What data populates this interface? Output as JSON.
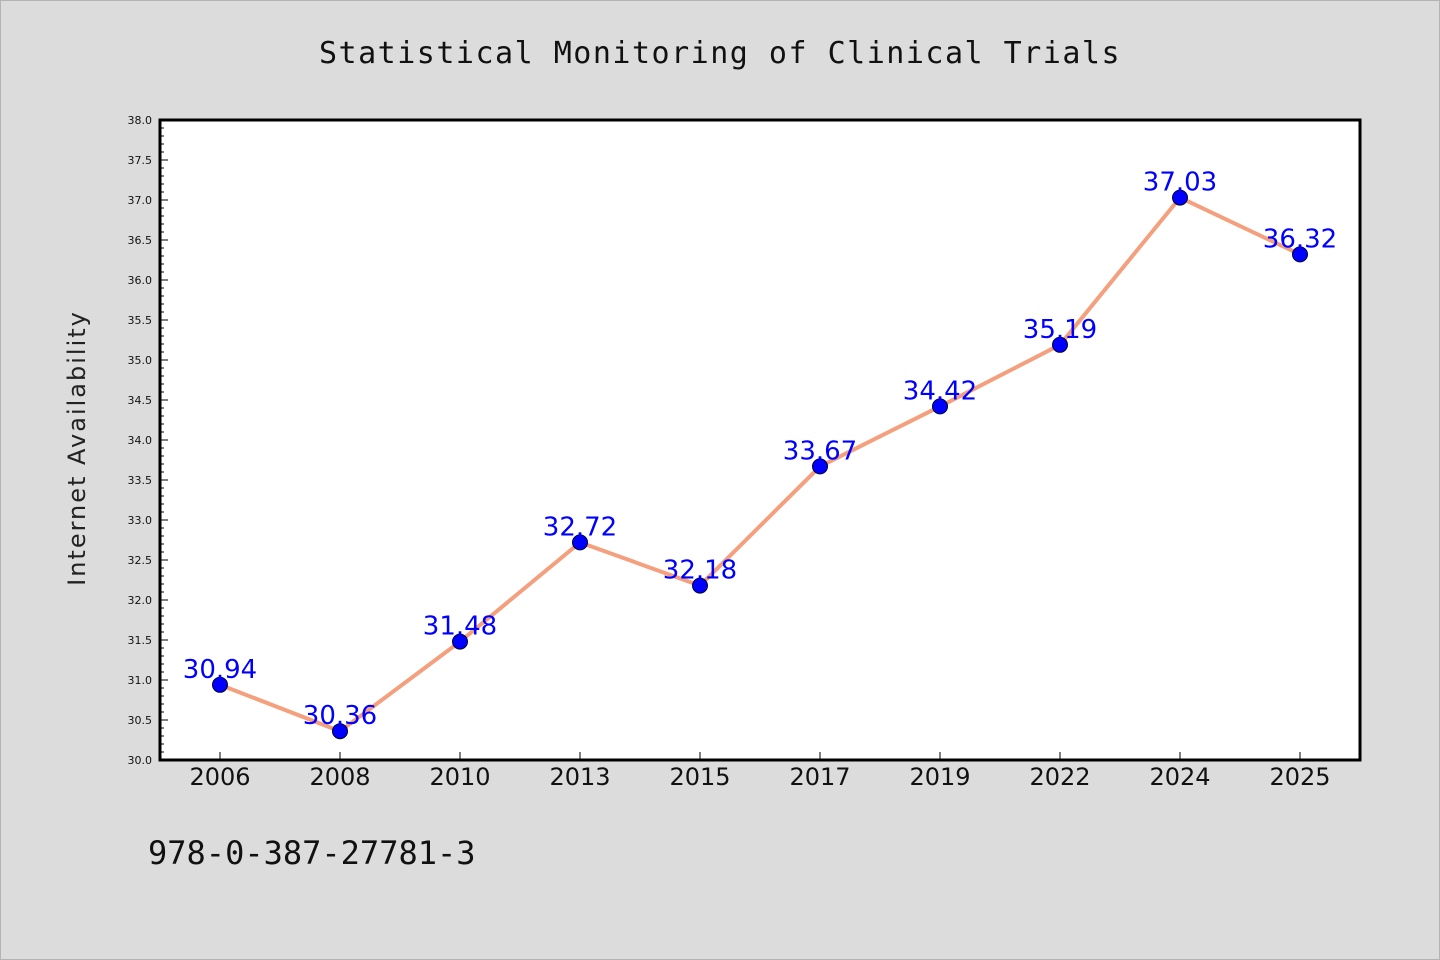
{
  "chart_data": {
    "type": "line",
    "title": "Statistical Monitoring of Clinical Trials",
    "xlabel": "",
    "ylabel": "Internet Availability",
    "categories": [
      "2006",
      "2008",
      "2010",
      "2013",
      "2015",
      "2017",
      "2019",
      "2022",
      "2024",
      "2025"
    ],
    "values": [
      30.94,
      30.36,
      31.48,
      32.72,
      32.18,
      33.67,
      34.42,
      35.19,
      37.03,
      36.32
    ],
    "value_labels": [
      "30.94",
      "30.36",
      "31.48",
      "32.72",
      "32.18",
      "33.67",
      "34.42",
      "35.19",
      "37.03",
      "36.32"
    ],
    "ylim": [
      30.0,
      38.0
    ],
    "yticks": [
      "30.0",
      "30.5",
      "31.0",
      "31.5",
      "32.0",
      "32.5",
      "33.0",
      "33.5",
      "34.0",
      "34.5",
      "35.0",
      "35.5",
      "36.0",
      "36.5",
      "37.0",
      "37.5",
      "38.0"
    ],
    "grid": false,
    "legend": "none",
    "line_color": "#f4a07e",
    "marker_color": "#0000ff",
    "label_color": "#0000ff",
    "plot_background": "#ffffff",
    "figure_background": "#dcdcdc"
  },
  "footer": {
    "isbn": "978-0-387-27781-3"
  }
}
